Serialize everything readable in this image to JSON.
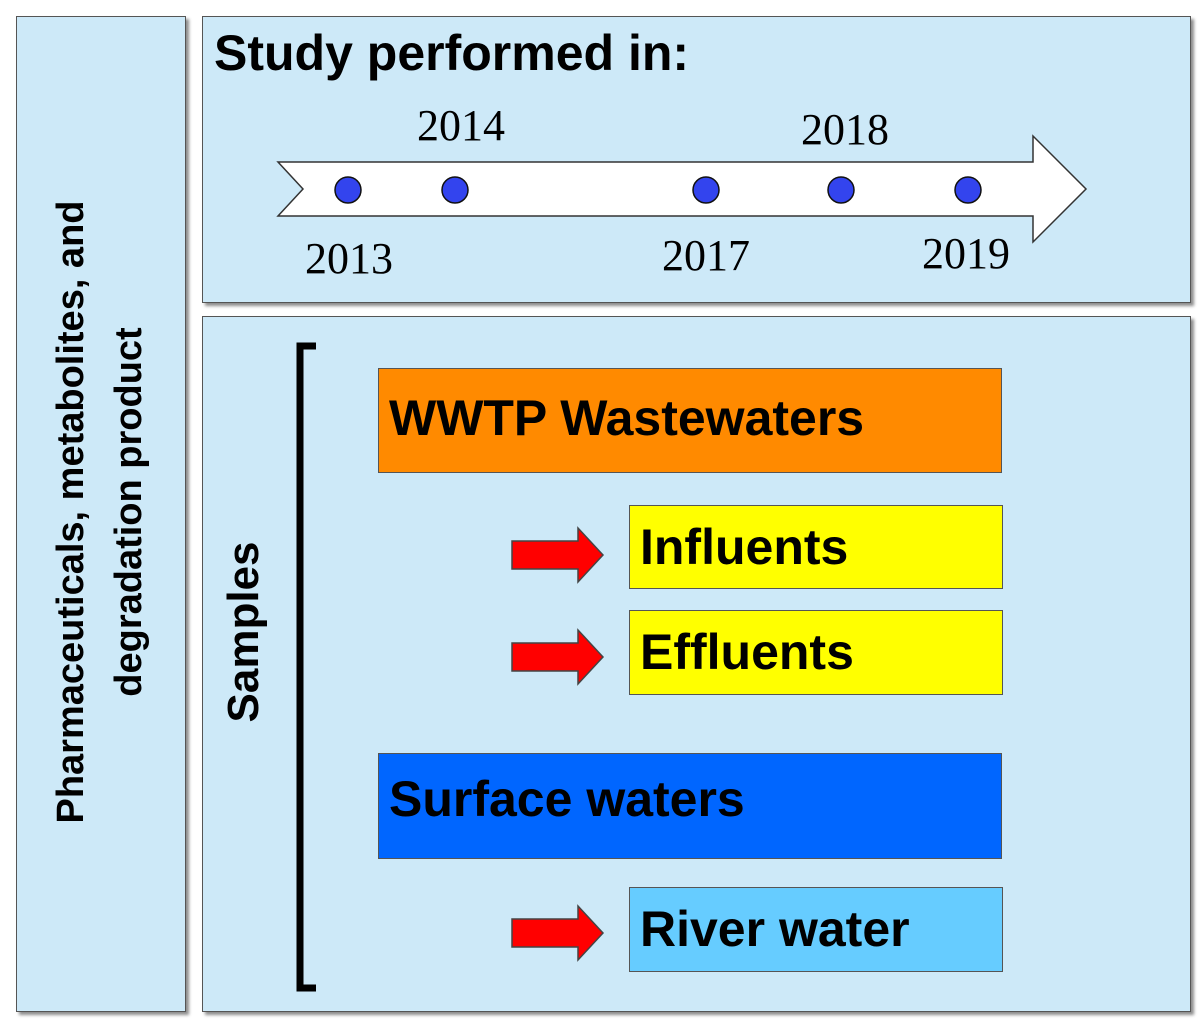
{
  "left_label": {
    "line1": "Pharmaceuticals, metabolites, and",
    "line2": "degradation product"
  },
  "timeline": {
    "title": "Study performed in:",
    "years": [
      "2013",
      "2014",
      "2017",
      "2018",
      "2019"
    ],
    "dot_color": "#3344ee"
  },
  "samples": {
    "label": "Samples",
    "wwtp": "WWTP Wastewaters",
    "influents": "Influents",
    "effluents": "Effluents",
    "surface": "Surface waters",
    "river": "River water"
  },
  "colors": {
    "panel_bg": "#cde9f8",
    "wwtp_box": "#ff8a00",
    "sub_box": "#ffff00",
    "surface_box": "#0066ff",
    "river_box": "#66ccff",
    "arrow": "#ff0000"
  }
}
